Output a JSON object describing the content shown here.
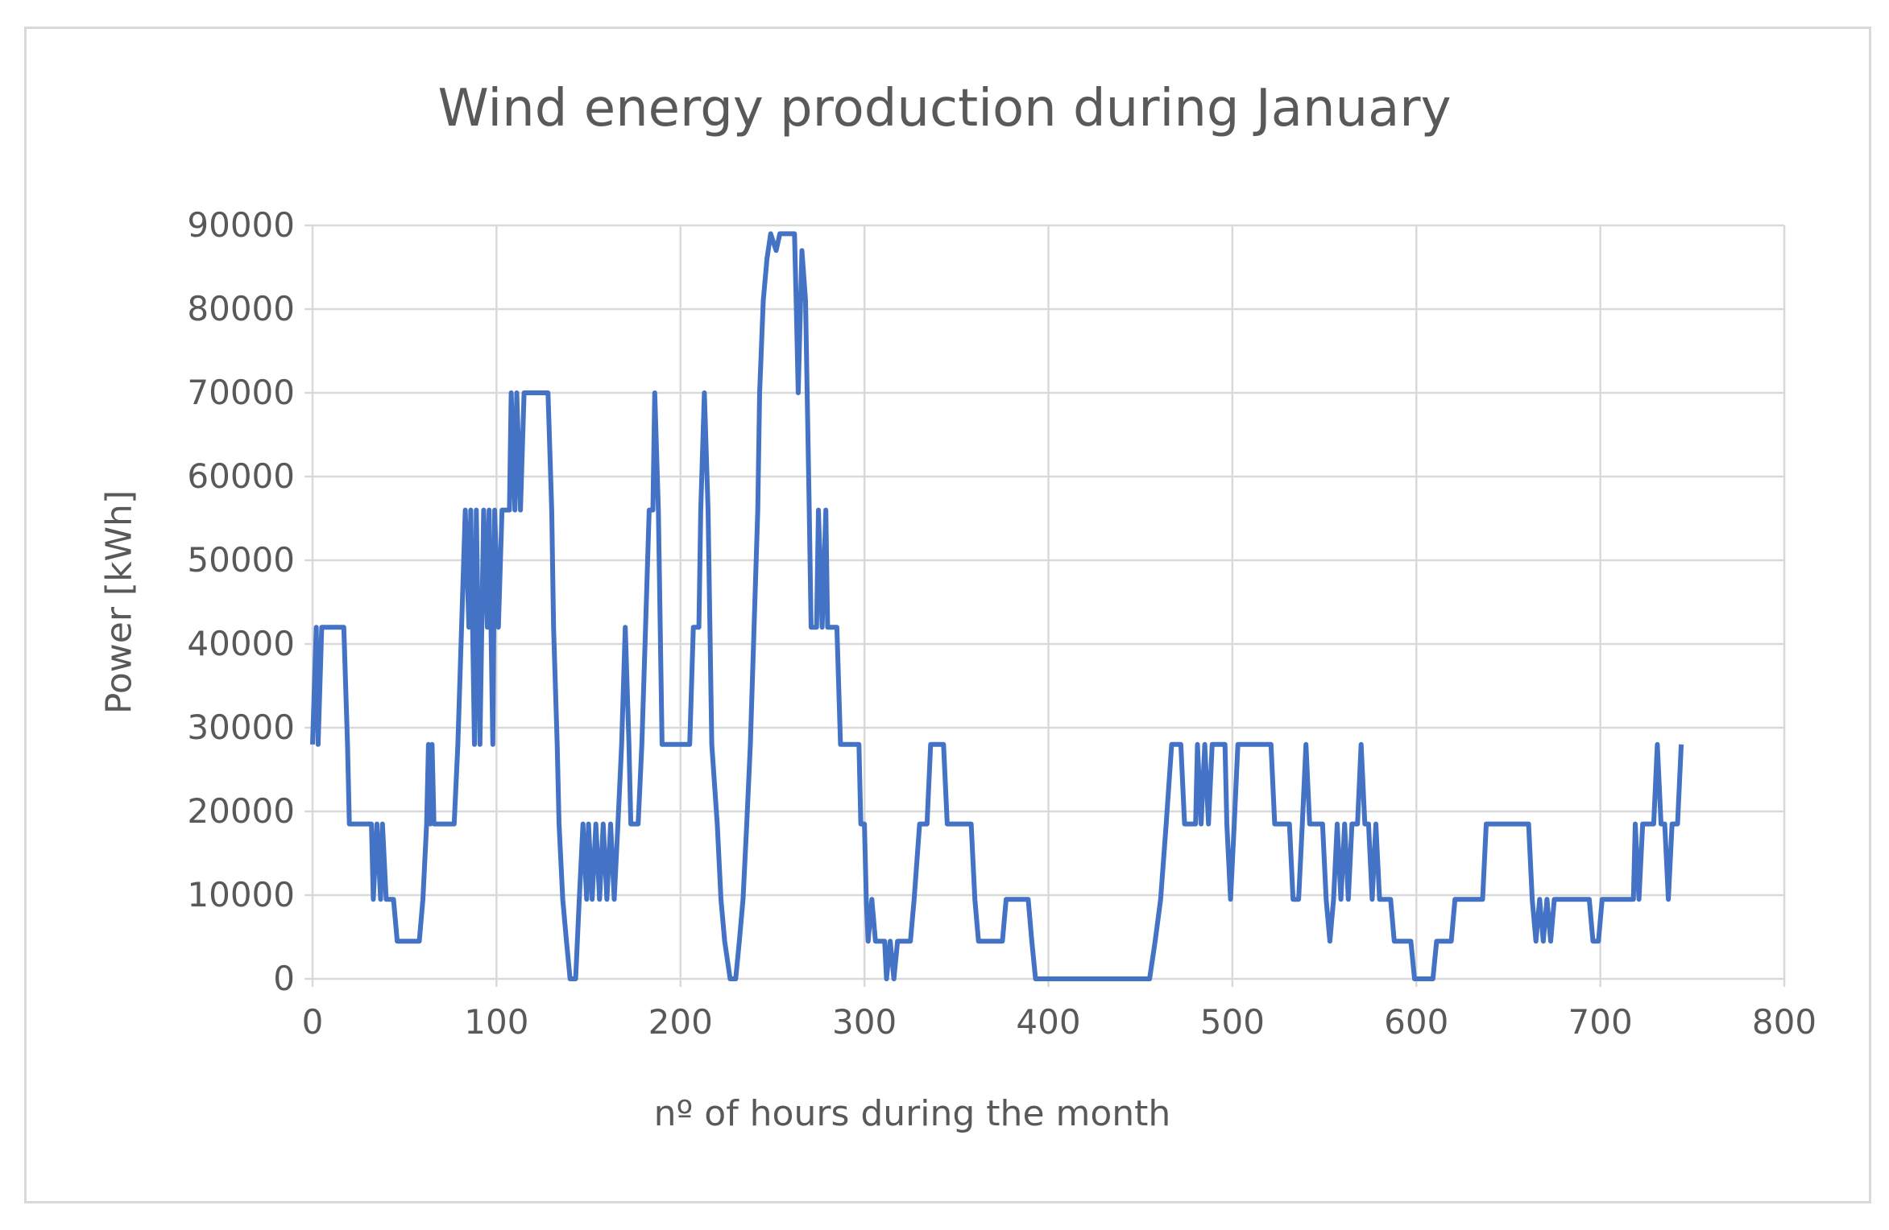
{
  "chart_data": {
    "type": "line",
    "title": "Wind energy production during January",
    "xlabel": "nº of hours during the month",
    "ylabel": "Power  [kWh]",
    "xlim": [
      0,
      800
    ],
    "ylim": [
      0,
      90000
    ],
    "x_ticks": [
      "0",
      "100",
      "200",
      "300",
      "400",
      "500",
      "600",
      "700",
      "800"
    ],
    "y_ticks": [
      "0",
      "10000",
      "20000",
      "30000",
      "40000",
      "50000",
      "60000",
      "70000",
      "80000",
      "90000"
    ],
    "grid": true,
    "legend": "none",
    "line_color": "#4472C4",
    "series": [
      {
        "x": [
          0,
          2,
          3,
          5,
          17,
          19,
          20,
          32,
          33,
          35,
          37,
          38,
          40,
          44,
          46,
          58,
          60,
          62,
          63,
          64,
          65,
          66,
          77,
          79,
          81,
          83,
          85,
          86,
          88,
          89,
          91,
          93,
          95,
          96,
          98,
          99,
          101,
          103,
          107,
          108,
          110,
          111,
          113,
          115,
          128,
          130,
          131,
          133,
          134,
          136,
          138,
          140,
          143,
          145,
          147,
          149,
          150,
          152,
          154,
          156,
          158,
          160,
          162,
          164,
          166,
          168,
          170,
          172,
          173,
          177,
          179,
          181,
          183,
          185,
          186,
          188,
          190,
          205,
          207,
          210,
          211,
          213,
          215,
          217,
          220,
          222,
          224,
          227,
          230,
          232,
          234,
          236,
          238,
          240,
          242,
          243,
          245,
          247,
          249,
          252,
          254,
          262,
          263,
          264,
          266,
          268,
          270,
          271,
          274,
          275,
          277,
          279,
          280,
          285,
          287,
          297,
          298,
          300,
          301,
          302,
          304,
          306,
          311,
          312,
          314,
          316,
          318,
          325,
          327,
          330,
          334,
          336,
          343,
          345,
          358,
          360,
          362,
          375,
          377,
          389,
          391,
          393,
          455,
          458,
          461,
          464,
          467,
          472,
          474,
          480,
          481,
          483,
          485,
          487,
          489,
          496,
          497,
          499,
          501,
          503,
          521,
          523,
          531,
          533,
          536,
          538,
          540,
          542,
          549,
          551,
          553,
          555,
          557,
          559,
          561,
          563,
          565,
          568,
          570,
          572,
          574,
          576,
          578,
          580,
          586,
          588,
          597,
          599,
          609,
          611,
          619,
          621,
          636,
          638,
          661,
          663,
          665,
          667,
          669,
          671,
          673,
          675,
          694,
          696,
          699,
          701,
          718,
          719,
          721,
          723,
          729,
          731,
          733,
          735,
          737,
          739,
          742,
          744
        ],
        "y": [
          28000,
          42000,
          28000,
          42000,
          42000,
          28000,
          18500,
          18500,
          9500,
          18500,
          9500,
          18500,
          9500,
          9500,
          4500,
          4500,
          9500,
          18500,
          28000,
          18500,
          28000,
          18500,
          18500,
          28000,
          42000,
          56000,
          42000,
          56000,
          28000,
          56000,
          28000,
          56000,
          42000,
          56000,
          28000,
          56000,
          42000,
          56000,
          56000,
          70000,
          56000,
          70000,
          56000,
          70000,
          70000,
          56000,
          42000,
          28000,
          18500,
          9500,
          4500,
          0,
          0,
          9500,
          18500,
          9500,
          18500,
          9500,
          18500,
          9500,
          18500,
          9500,
          18500,
          9500,
          18500,
          28000,
          42000,
          28000,
          18500,
          18500,
          28000,
          42000,
          56000,
          56000,
          70000,
          56000,
          28000,
          28000,
          42000,
          42000,
          56000,
          70000,
          56000,
          28000,
          18500,
          9500,
          4500,
          0,
          0,
          4500,
          9500,
          18500,
          28000,
          42000,
          56000,
          70000,
          81000,
          86000,
          89000,
          87000,
          89000,
          89000,
          80000,
          70000,
          87000,
          81000,
          56000,
          42000,
          42000,
          56000,
          42000,
          56000,
          42000,
          42000,
          28000,
          28000,
          18500,
          18500,
          9500,
          4500,
          9500,
          4500,
          4500,
          0,
          4500,
          0,
          4500,
          4500,
          9500,
          18500,
          18500,
          28000,
          28000,
          18500,
          18500,
          9500,
          4500,
          4500,
          9500,
          9500,
          4500,
          0,
          0,
          4500,
          9500,
          18500,
          28000,
          28000,
          18500,
          18500,
          28000,
          18500,
          28000,
          18500,
          28000,
          28000,
          18500,
          9500,
          18500,
          28000,
          28000,
          18500,
          18500,
          9500,
          9500,
          18500,
          28000,
          18500,
          18500,
          9500,
          4500,
          9500,
          18500,
          9500,
          18500,
          9500,
          18500,
          18500,
          28000,
          18500,
          18500,
          9500,
          18500,
          9500,
          9500,
          4500,
          4500,
          0,
          0,
          4500,
          4500,
          9500,
          9500,
          18500,
          18500,
          9500,
          4500,
          9500,
          4500,
          9500,
          4500,
          9500,
          9500,
          4500,
          4500,
          9500,
          9500,
          18500,
          9500,
          18500,
          18500,
          28000,
          18500,
          18500,
          9500,
          18500,
          18500,
          28000
        ]
      }
    ]
  }
}
